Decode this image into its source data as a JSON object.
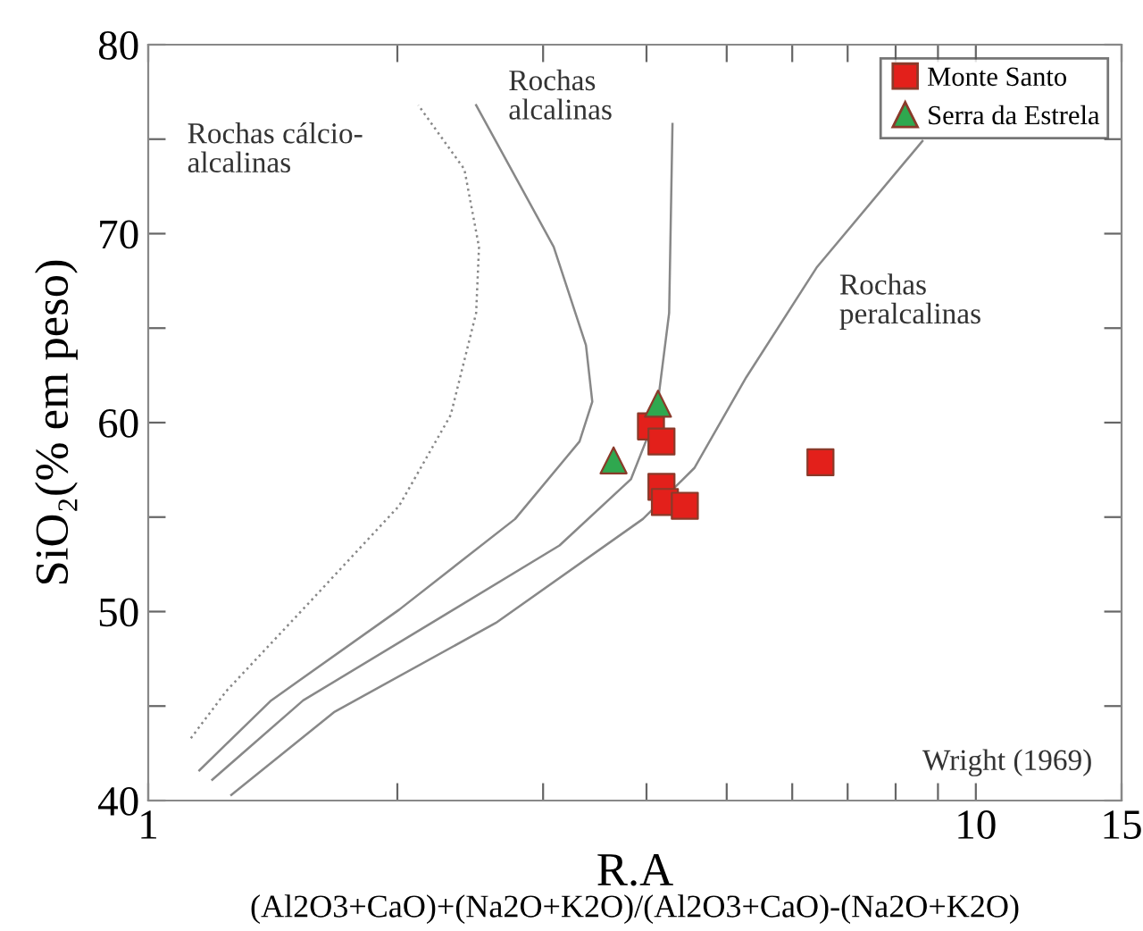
{
  "chart_data": {
    "type": "scatter",
    "xlabel": "R.A",
    "ylabel": "SiO₂(% em peso)",
    "log": "x",
    "xlim": [
      1,
      15
    ],
    "xticks": [
      1,
      {
        "value": 2,
        "label": null
      },
      {
        "value": 3,
        "label": null
      },
      {
        "value": 4,
        "label": null
      },
      {
        "value": 5,
        "label": null
      },
      {
        "value": 6,
        "label": null
      },
      {
        "value": 7,
        "label": null
      },
      {
        "value": 8,
        "label": null
      },
      {
        "value": 9,
        "label": null
      },
      10,
      15
    ],
    "ylim": [
      40,
      80
    ],
    "yticks": [
      40,
      {
        "value": 45,
        "label": null
      },
      50,
      {
        "value": 55,
        "label": null
      },
      60,
      {
        "value": 65,
        "label": null
      },
      70,
      {
        "value": 75,
        "label": null
      },
      80
    ],
    "grid": false,
    "legend": "top right",
    "series": [
      {
        "type": "line",
        "color": "#888888",
        "line_style": "dotted",
        "marker": "none",
        "x": [
          1.126,
          1.243,
          1.567,
          2.01,
          2.32,
          2.49,
          2.51,
          2.41,
          2.12
        ],
        "values": [
          43.3,
          45.8,
          50.5,
          55.6,
          60.4,
          65.8,
          69.3,
          73.4,
          76.8
        ]
      },
      {
        "type": "line",
        "color": "#888888",
        "line_style": "solid",
        "marker": "none",
        "x": [
          1.153,
          1.408,
          2.01,
          2.775,
          3.32,
          3.44,
          3.38,
          3.09,
          2.49
        ],
        "values": [
          41.6,
          45.3,
          50.1,
          54.9,
          59.0,
          61.1,
          64.1,
          69.3,
          76.8
        ]
      },
      {
        "type": "line",
        "color": "#888888",
        "line_style": "solid",
        "marker": "none",
        "x": [
          1.195,
          1.539,
          2.2,
          3.14,
          3.83,
          4.11,
          4.26,
          4.3
        ],
        "values": [
          41.1,
          45.3,
          49.4,
          53.5,
          57.0,
          60.4,
          65.8,
          75.8
        ]
      },
      {
        "type": "line",
        "color": "#888888",
        "line_style": "solid",
        "marker": "none",
        "x": [
          1.26,
          1.68,
          2.63,
          3.96,
          4.57,
          5.28,
          6.42,
          8.62
        ],
        "values": [
          40.3,
          44.7,
          49.4,
          54.9,
          57.6,
          62.4,
          68.2,
          74.9
        ]
      },
      {
        "name": "Monte Santo",
        "color": "#e3201b",
        "marker": "square",
        "x": [
          4.05,
          4.17,
          4.17,
          4.21,
          4.45,
          6.49
        ],
        "values": [
          59.8,
          59.0,
          56.6,
          55.8,
          55.6,
          57.9
        ]
      },
      {
        "name": "Serra da Estrela",
        "color": "#2fa84f",
        "marker": "triangle",
        "x": [
          4.13,
          3.65
        ],
        "values": [
          61.0,
          58.0
        ]
      }
    ],
    "annotations": [
      "(Al2O3+CaO)+(Na2O+K2O)/(Al2O3+CaO)-(Na2O+K2O)",
      "Wright (1969)",
      "Rochas cálcio-\nalcalinas",
      "Rochas\nalcalinas",
      "Rochas\nperalcalinas"
    ]
  }
}
